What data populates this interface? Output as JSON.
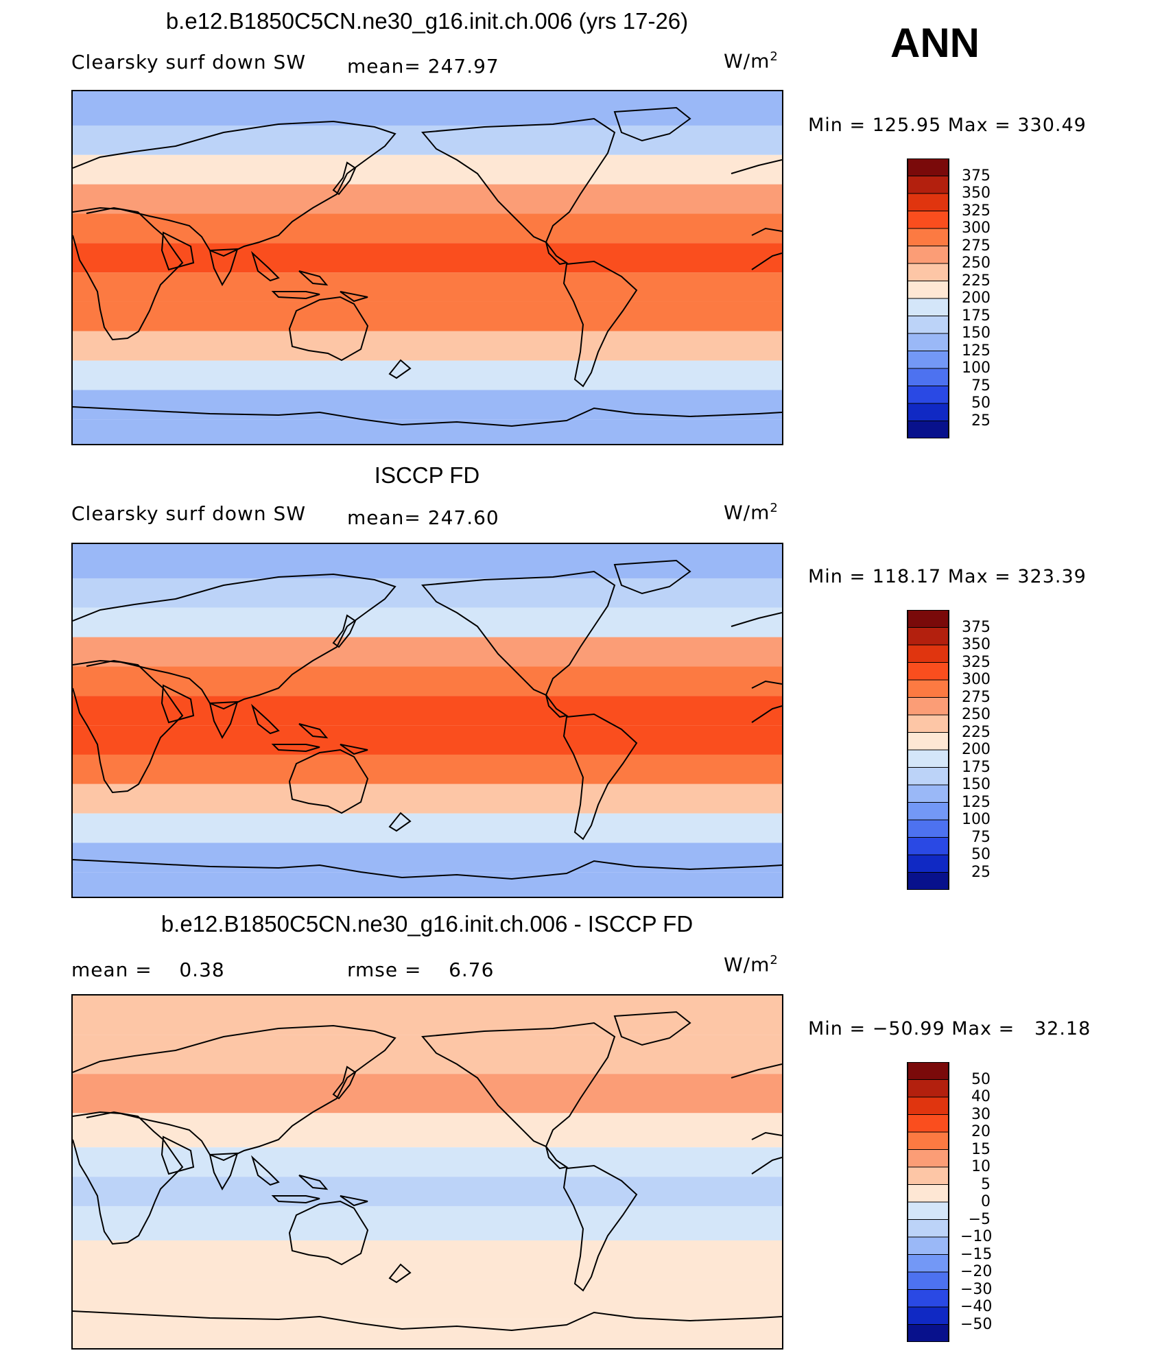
{
  "season": "ANN",
  "units_label": "W/m",
  "units_sup": "2",
  "panels": [
    {
      "title": "b.e12.B1850C5CN.ne30_g16.init.ch.006 (yrs 17-26)",
      "variable": "Clearsky surf down SW",
      "stat_left": "",
      "stat_mid": "mean= 247.97",
      "min_max": "Min = 125.95 Max = 330.49",
      "palette": "absolute"
    },
    {
      "title": "ISCCP FD",
      "variable": "Clearsky surf down SW",
      "stat_left": "",
      "stat_mid": "mean= 247.60",
      "min_max": "Min = 118.17 Max = 323.39",
      "palette": "absolute"
    },
    {
      "title": "b.e12.B1850C5CN.ne30_g16.init.ch.006 - ISCCP FD",
      "variable": "",
      "stat_left": "mean =    0.38",
      "stat_mid": "rmse =    6.76",
      "min_max": "Min = −50.99 Max =   32.18",
      "palette": "difference"
    }
  ],
  "colorbars": {
    "absolute": {
      "levels": [
        "375",
        "350",
        "325",
        "300",
        "275",
        "250",
        "225",
        "200",
        "175",
        "150",
        "125",
        "100",
        "75",
        "50",
        "25"
      ],
      "colors": [
        "#7a0a0a",
        "#b3200e",
        "#e0350f",
        "#fa4e1e",
        "#fc7a42",
        "#fb9d76",
        "#fdc6a6",
        "#fee7d4",
        "#d4e6f9",
        "#bcd3f8",
        "#9ab8f7",
        "#7398f6",
        "#4d72f0",
        "#2a49e4",
        "#1029c4",
        "#08118c"
      ]
    },
    "difference": {
      "levels": [
        "50",
        "40",
        "30",
        "20",
        "15",
        "10",
        "5",
        "0",
        "−5",
        "−10",
        "−15",
        "−20",
        "−30",
        "−40",
        "−50"
      ],
      "colors": [
        "#7a0a0a",
        "#b3200e",
        "#e0350f",
        "#fa4e1e",
        "#fc7a42",
        "#fb9d76",
        "#fdc6a6",
        "#fee7d4",
        "#d4e6f9",
        "#bcd3f8",
        "#9ab8f7",
        "#7398f6",
        "#4d72f0",
        "#2a49e4",
        "#1029c4",
        "#08118c"
      ]
    }
  },
  "chart_data": [
    {
      "type": "heatmap",
      "title": "b.e12.B1850C5CN.ne30_g16.init.ch.006 (yrs 17-26)",
      "variable": "Clearsky surf down SW",
      "units": "W/m2",
      "mean": 247.97,
      "min": 125.95,
      "max": 330.49,
      "contour_levels": [
        25,
        50,
        75,
        100,
        125,
        150,
        175,
        200,
        225,
        250,
        275,
        300,
        325,
        350,
        375
      ],
      "zonal_band_values": [
        {
          "lat": 80,
          "value": 140
        },
        {
          "lat": 65,
          "value": 165
        },
        {
          "lat": 50,
          "value": 200
        },
        {
          "lat": 35,
          "value": 260
        },
        {
          "lat": 20,
          "value": 290
        },
        {
          "lat": 5,
          "value": 305
        },
        {
          "lat": -10,
          "value": 295
        },
        {
          "lat": -25,
          "value": 275
        },
        {
          "lat": -40,
          "value": 230
        },
        {
          "lat": -55,
          "value": 185
        },
        {
          "lat": -70,
          "value": 145
        },
        {
          "lat": -85,
          "value": 130
        }
      ]
    },
    {
      "type": "heatmap",
      "title": "ISCCP FD",
      "variable": "Clearsky surf down SW",
      "units": "W/m2",
      "mean": 247.6,
      "min": 118.17,
      "max": 323.39,
      "contour_levels": [
        25,
        50,
        75,
        100,
        125,
        150,
        175,
        200,
        225,
        250,
        275,
        300,
        325,
        350,
        375
      ],
      "zonal_band_values": [
        {
          "lat": 80,
          "value": 125
        },
        {
          "lat": 65,
          "value": 160
        },
        {
          "lat": 50,
          "value": 195
        },
        {
          "lat": 35,
          "value": 255
        },
        {
          "lat": 20,
          "value": 290
        },
        {
          "lat": 5,
          "value": 305
        },
        {
          "lat": -10,
          "value": 300
        },
        {
          "lat": -25,
          "value": 275
        },
        {
          "lat": -40,
          "value": 230
        },
        {
          "lat": -55,
          "value": 185
        },
        {
          "lat": -70,
          "value": 145
        },
        {
          "lat": -85,
          "value": 130
        }
      ]
    },
    {
      "type": "heatmap",
      "title": "b.e12.B1850C5CN.ne30_g16.init.ch.006 - ISCCP FD",
      "units": "W/m2",
      "mean": 0.38,
      "rmse": 6.76,
      "min": -50.99,
      "max": 32.18,
      "contour_levels": [
        -50,
        -40,
        -30,
        -20,
        -15,
        -10,
        -5,
        0,
        5,
        10,
        15,
        20,
        30,
        40,
        50
      ],
      "zonal_band_values": [
        {
          "lat": 80,
          "value": 5
        },
        {
          "lat": 60,
          "value": 8
        },
        {
          "lat": 40,
          "value": 10
        },
        {
          "lat": 20,
          "value": 3
        },
        {
          "lat": 5,
          "value": -3
        },
        {
          "lat": -10,
          "value": -6
        },
        {
          "lat": -25,
          "value": -4
        },
        {
          "lat": -45,
          "value": 2
        },
        {
          "lat": -65,
          "value": 1
        },
        {
          "lat": -85,
          "value": 2
        }
      ]
    }
  ]
}
